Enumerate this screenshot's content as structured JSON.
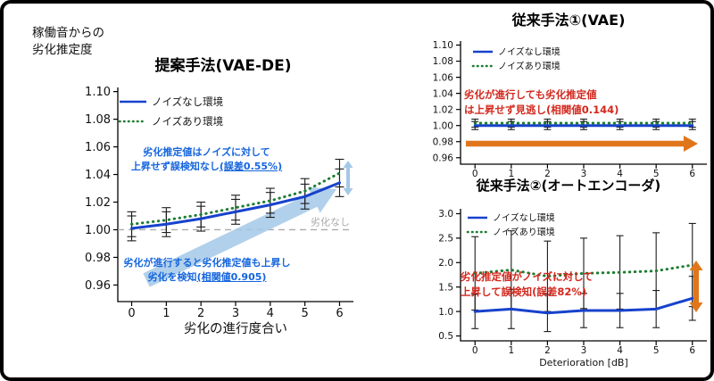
{
  "colors": {
    "line_blue": "#1742cc",
    "line_green": "#1e7d32",
    "annotation_blue": "#1565dd",
    "annotation_red": "#d3281e",
    "orange_arrow": "#e0761c",
    "light_blue_arrow": "#a4c8e8",
    "baseline_gray": "#aaaaaa",
    "error_bar": "#1b1b1b"
  },
  "chart_data": [
    {
      "id": "proposed",
      "type": "line",
      "title": "提案手法(VAE-DE)",
      "ylabel_lines": [
        "稼働音からの",
        "劣化推定度"
      ],
      "xlabel": "劣化の進行度合い",
      "x": [
        0,
        1,
        2,
        3,
        4,
        5,
        6
      ],
      "xtick_labels": [
        "0",
        "1",
        "2",
        "3",
        "4",
        "5",
        "6"
      ],
      "ytick_labels": [
        "0.96",
        "0.98",
        "1.00",
        "1.02",
        "1.04",
        "1.06",
        "1.08",
        "1.10"
      ],
      "ylim": [
        0.948,
        1.103
      ],
      "series": [
        {
          "name": "ノイズなし環境",
          "line": "solid",
          "color": "line_blue",
          "values": [
            1.001,
            1.004,
            1.008,
            1.013,
            1.018,
            1.024,
            1.034
          ],
          "yerr": [
            0.009,
            0.009,
            0.009,
            0.009,
            0.009,
            0.009,
            0.01
          ]
        },
        {
          "name": "ノイズあり環境",
          "line": "dotted",
          "color": "line_green",
          "values": [
            1.004,
            1.007,
            1.011,
            1.016,
            1.021,
            1.028,
            1.041
          ],
          "yerr": [
            0.009,
            0.009,
            0.009,
            0.009,
            0.009,
            0.009,
            0.01
          ]
        }
      ],
      "baseline": {
        "value": 1.0,
        "label": "劣化なし"
      },
      "annotations": [
        {
          "line1": "劣化推定値はノイズに対して",
          "line2": "上昇せず誤検知なし",
          "line2_u": "(誤差0.55%)"
        },
        {
          "line1": "劣化が進行すると劣化推定値も上昇し",
          "line2": "劣化を検知",
          "line2_u": "(相関値0.905)"
        }
      ]
    },
    {
      "id": "vae",
      "type": "line",
      "title": "従来手法①(VAE)",
      "x": [
        0,
        1,
        2,
        3,
        4,
        5,
        6
      ],
      "xtick_labels": [
        "0",
        "1",
        "2",
        "3",
        "4",
        "5",
        "6"
      ],
      "ytick_labels": [
        "0.96",
        "0.98",
        "1.00",
        "1.02",
        "1.04",
        "1.06",
        "1.08",
        "1.10"
      ],
      "ylim": [
        0.952,
        1.105
      ],
      "series": [
        {
          "name": "ノイズなし環境",
          "line": "solid",
          "color": "line_blue",
          "values": [
            1.0,
            1.0,
            1.0,
            1.0,
            1.0,
            1.0,
            1.0
          ],
          "yerr": [
            0.005,
            0.005,
            0.005,
            0.005,
            0.005,
            0.005,
            0.005
          ]
        },
        {
          "name": "ノイズあり環境",
          "line": "dotted",
          "color": "line_green",
          "values": [
            1.003,
            1.003,
            1.003,
            1.003,
            1.003,
            1.003,
            1.003
          ],
          "yerr": [
            0.005,
            0.005,
            0.005,
            0.005,
            0.005,
            0.005,
            0.005
          ]
        }
      ],
      "annotations": [
        {
          "line1": "劣化が進行しても劣化推定値",
          "line2": "は上昇せず見逃し(相関値0.144)"
        }
      ]
    },
    {
      "id": "ae",
      "type": "line",
      "title": "従来手法②(オートエンコーダ)",
      "xlabel": "Deterioration [dB]",
      "x": [
        0,
        1,
        2,
        3,
        4,
        5,
        6
      ],
      "xtick_labels": [
        "0",
        "1",
        "2",
        "3",
        "4",
        "5",
        "6"
      ],
      "ytick_labels": [
        "0.5",
        "1.0",
        "1.5",
        "2.0",
        "2.5",
        "3.0"
      ],
      "ylim": [
        0.4,
        3.1
      ],
      "series": [
        {
          "name": "ノイズなし環境",
          "line": "solid",
          "color": "line_blue",
          "values": [
            1.0,
            1.05,
            0.97,
            1.02,
            1.02,
            1.05,
            1.27
          ],
          "yerr": [
            0.35,
            0.4,
            0.38,
            0.35,
            0.35,
            0.38,
            0.45
          ]
        },
        {
          "name": "ノイズあり環境",
          "line": "dotted",
          "color": "line_green",
          "values": [
            1.78,
            1.85,
            1.72,
            1.78,
            1.8,
            1.83,
            1.95
          ],
          "yerr": [
            0.75,
            0.8,
            0.72,
            0.72,
            0.75,
            0.78,
            0.85
          ]
        }
      ],
      "annotations": [
        {
          "line1": "劣化推定値がノイズに対して",
          "line2": "上昇して誤検知(誤差82%)"
        }
      ]
    }
  ]
}
